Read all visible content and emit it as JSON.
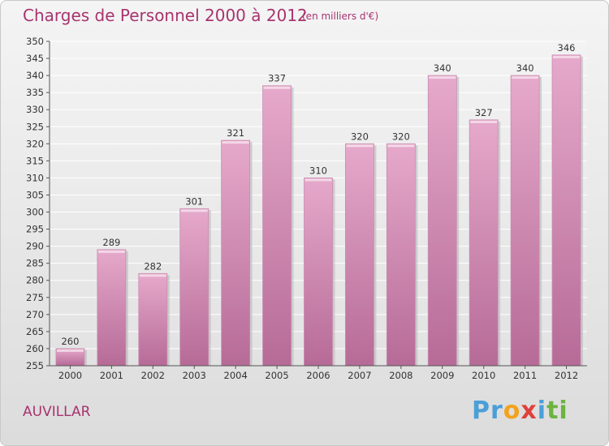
{
  "title": "Charges de Personnel 2000 à 2012",
  "subtitle": "(en milliers d'€)",
  "town": "AUVILLAR",
  "logo": {
    "letters": [
      "P",
      "r",
      "o",
      "x",
      "i",
      "t",
      "i"
    ],
    "colors": [
      "#4a9fd8",
      "#4a9fd8",
      "#f2a21c",
      "#e0403a",
      "#4a9fd8",
      "#6cb43f",
      "#6cb43f"
    ]
  },
  "colors": {
    "title": "#a8336f",
    "bar_top": "#e6a9cb",
    "bar_bottom": "#b66b97"
  },
  "chart_data": {
    "type": "bar",
    "categories": [
      "2000",
      "2001",
      "2002",
      "2003",
      "2004",
      "2005",
      "2006",
      "2007",
      "2008",
      "2009",
      "2010",
      "2011",
      "2012"
    ],
    "values": [
      260,
      289,
      282,
      301,
      321,
      337,
      310,
      320,
      320,
      340,
      327,
      340,
      346
    ],
    "title": "Charges de Personnel 2000 à 2012",
    "ylim": [
      255,
      350
    ],
    "yticks": [
      255,
      260,
      265,
      270,
      275,
      280,
      285,
      290,
      295,
      300,
      305,
      310,
      315,
      320,
      325,
      330,
      335,
      340,
      345,
      350
    ],
    "grid": true
  }
}
